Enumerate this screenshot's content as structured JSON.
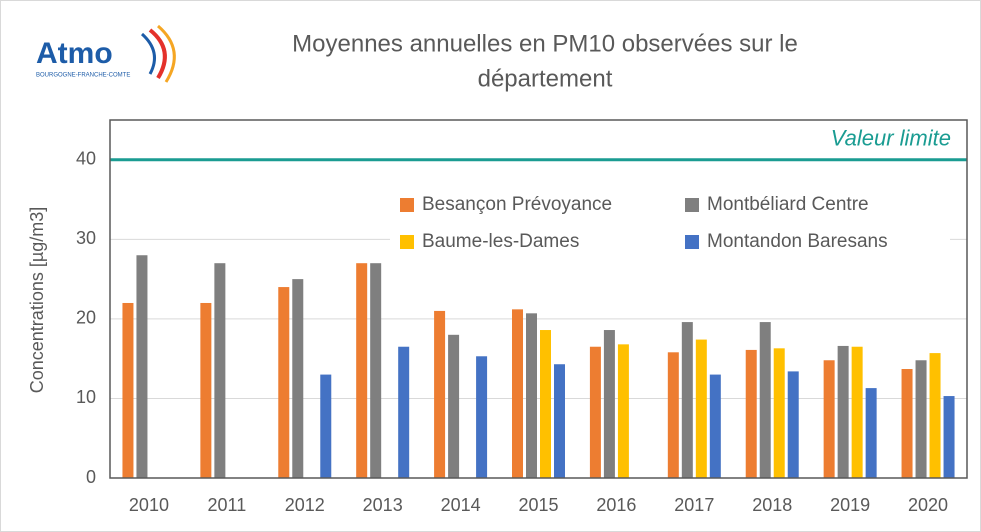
{
  "logo": {
    "name": "Atmo",
    "region": "BOURGOGNE-FRANCHE-COMTE"
  },
  "chart_data": {
    "type": "bar",
    "title": [
      "Moyennes annuelles en PM10 observées sur le",
      "département"
    ],
    "y_label": "Concentrations [µg/m3]",
    "categories": [
      "2010",
      "2011",
      "2012",
      "2013",
      "2014",
      "2015",
      "2016",
      "2017",
      "2018",
      "2019",
      "2020"
    ],
    "series": [
      {
        "name": "Besançon Prévoyance",
        "color": "#ed7d31",
        "values": [
          22,
          22,
          24,
          27,
          21,
          21.2,
          16.5,
          15.8,
          16.1,
          14.8,
          13.7
        ]
      },
      {
        "name": "Montbéliard Centre",
        "color": "#7f7f7f",
        "values": [
          28,
          27,
          25,
          27,
          18,
          20.7,
          18.6,
          19.6,
          19.6,
          16.6,
          14.8
        ]
      },
      {
        "name": "Baume-les-Dames",
        "color": "#ffc000",
        "values": [
          null,
          null,
          null,
          null,
          null,
          18.6,
          16.8,
          17.4,
          16.3,
          16.5,
          15.7
        ]
      },
      {
        "name": "Montandon Baresans",
        "color": "#4472c4",
        "values": [
          null,
          null,
          13,
          16.5,
          15.3,
          14.3,
          null,
          13,
          13.4,
          11.3,
          10.3
        ]
      }
    ],
    "ylim": [
      0,
      45
    ],
    "yticks": [
      0,
      10,
      20,
      30,
      40
    ],
    "grid": true,
    "reference_line": {
      "value": 40,
      "label": "Valeur limite",
      "color": "#1a9c92"
    }
  }
}
